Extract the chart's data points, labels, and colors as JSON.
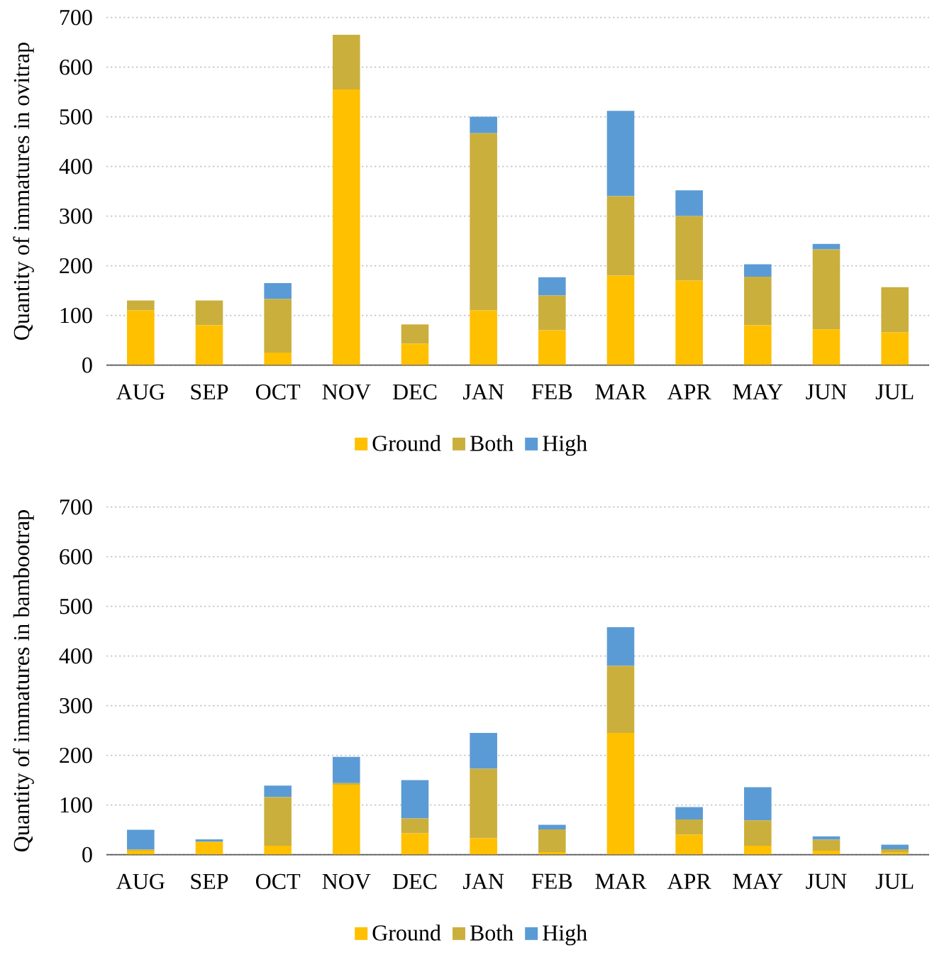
{
  "chart_data": [
    {
      "type": "bar",
      "stacked": true,
      "ylabel": "Quantity of immatures in ovitrap",
      "categories": [
        "AUG",
        "SEP",
        "OCT",
        "NOV",
        "DEC",
        "JAN",
        "FEB",
        "MAR",
        "APR",
        "MAY",
        "JUN",
        "JUL"
      ],
      "series": [
        {
          "name": "Ground",
          "color": "#ffc000",
          "values": [
            110,
            80,
            25,
            555,
            43,
            110,
            70,
            180,
            170,
            80,
            72,
            66
          ]
        },
        {
          "name": "Both",
          "color": "#cbaf3d",
          "values": [
            20,
            50,
            108,
            110,
            39,
            357,
            70,
            160,
            130,
            98,
            161,
            91
          ]
        },
        {
          "name": "High",
          "color": "#5b9bd5",
          "values": [
            0,
            0,
            32,
            0,
            0,
            33,
            37,
            172,
            52,
            25,
            11,
            0
          ]
        }
      ],
      "ylim": [
        0,
        700
      ],
      "yticks": [
        0,
        100,
        200,
        300,
        400,
        500,
        600,
        700
      ],
      "grid": "y",
      "legend": "bottom"
    },
    {
      "type": "bar",
      "stacked": true,
      "ylabel": "Quantity of immatures in bambootrap",
      "categories": [
        "AUG",
        "SEP",
        "OCT",
        "NOV",
        "DEC",
        "JAN",
        "FEB",
        "MAR",
        "APR",
        "MAY",
        "JUN",
        "JUL"
      ],
      "series": [
        {
          "name": "Ground",
          "color": "#ffc000",
          "values": [
            8,
            26,
            18,
            141,
            43,
            33,
            5,
            245,
            40,
            18,
            8,
            4
          ]
        },
        {
          "name": "Both",
          "color": "#cbaf3d",
          "values": [
            2,
            0,
            98,
            3,
            30,
            140,
            46,
            135,
            31,
            51,
            22,
            7
          ]
        },
        {
          "name": "High",
          "color": "#5b9bd5",
          "values": [
            40,
            5,
            23,
            53,
            77,
            72,
            9,
            78,
            25,
            67,
            7,
            9
          ]
        }
      ],
      "ylim": [
        0,
        700
      ],
      "yticks": [
        0,
        100,
        200,
        300,
        400,
        500,
        600,
        700
      ],
      "grid": "y",
      "legend": "bottom"
    }
  ]
}
